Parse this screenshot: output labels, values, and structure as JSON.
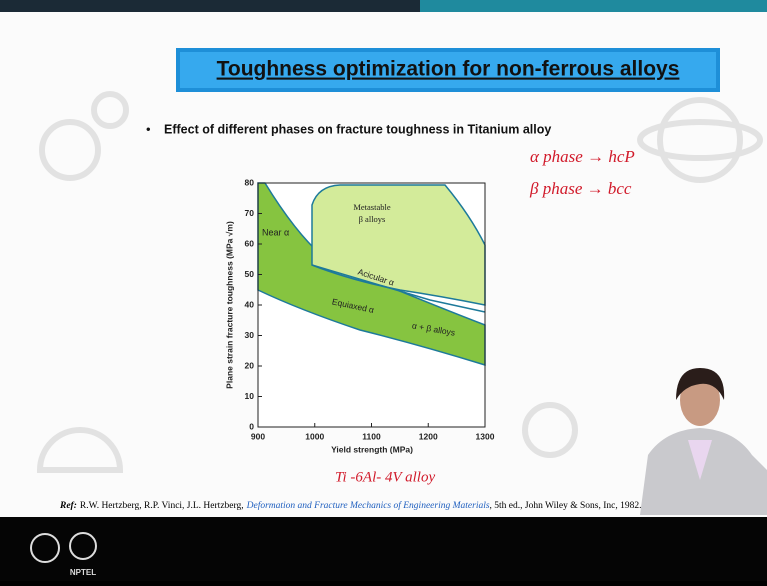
{
  "slide": {
    "title": "Toughness optimization for non-ferrous alloys",
    "bullet": "Effect of different phases on fracture toughness in Titanium alloy",
    "notes": [
      "α phase → hcP",
      "β phase → bcc",
      "Ti -6Al- 4V alloy"
    ],
    "figure": {
      "xlabel": "Yield strength (MPa)",
      "ylabel": "Plane strain fracture toughness (MPa √m)",
      "xlim": [
        900,
        1300
      ],
      "ylim": [
        0,
        80
      ],
      "xticks": [
        900,
        1000,
        1100,
        1200,
        1300
      ],
      "yticks": [
        0,
        10,
        20,
        30,
        40,
        50,
        60,
        70,
        80
      ],
      "regions": [
        "Near α",
        "Metastable",
        "β alloys",
        "Acicular α",
        "Equiaxed α",
        "α + β alloys"
      ]
    },
    "reference": {
      "lead": "Ref:",
      "authors": "R.W. Hertzberg, R.P. Vinci, J.L. Hertzberg,",
      "book": "Deformation and Fracture Mechanics of Engineering Materials",
      "rest": ", 5th ed., John Wiley & Sons, Inc, 1982."
    },
    "logo_caption": "NPTEL"
  }
}
